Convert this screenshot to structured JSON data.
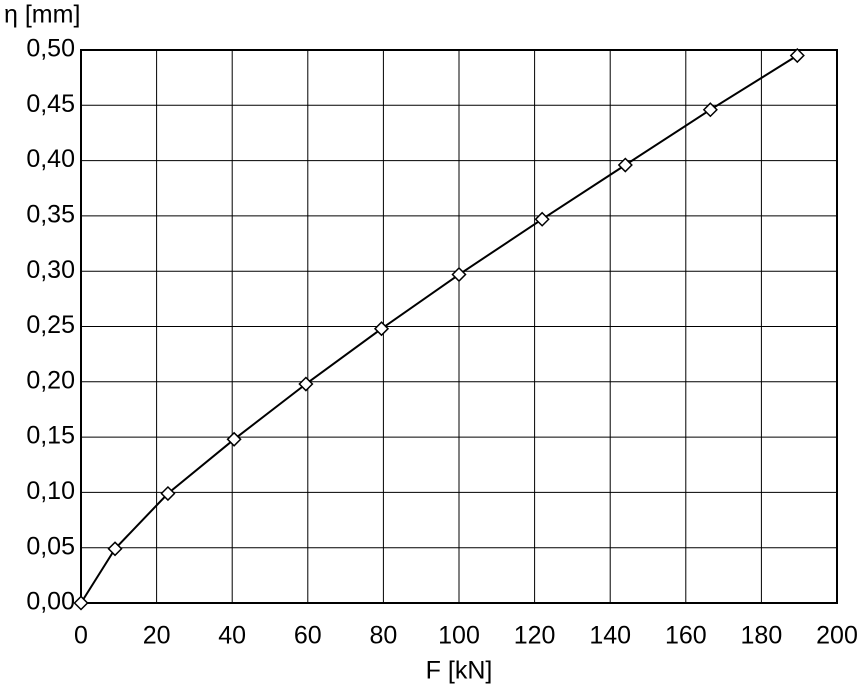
{
  "chart_data": {
    "type": "line",
    "x_label": "F [kN]",
    "y_label": "η [mm]",
    "x": [
      0,
      9,
      23,
      40.5,
      59.5,
      79.5,
      100,
      122,
      144,
      166.5,
      189.5
    ],
    "series": [
      {
        "name": "η",
        "color": "#000000",
        "values": [
          0,
          0.049,
          0.099,
          0.148,
          0.198,
          0.248,
          0.297,
          0.347,
          0.396,
          0.446,
          0.495
        ]
      }
    ],
    "xlim": [
      0,
      200
    ],
    "xticks": [
      0,
      20,
      40,
      60,
      80,
      100,
      120,
      140,
      160,
      180,
      200
    ],
    "ylim": [
      0,
      0.5
    ],
    "yticks": [
      {
        "value": 0,
        "label": "0,00"
      },
      {
        "value": 0.05,
        "label": "0,05"
      },
      {
        "value": 0.1,
        "label": "0,10"
      },
      {
        "value": 0.15,
        "label": "0,15"
      },
      {
        "value": 0.2,
        "label": "0,20"
      },
      {
        "value": 0.25,
        "label": "0,25"
      },
      {
        "value": 0.3,
        "label": "0,30"
      },
      {
        "value": 0.35,
        "label": "0,35"
      },
      {
        "value": 0.4,
        "label": "0,40"
      },
      {
        "value": 0.45,
        "label": "0,45"
      },
      {
        "value": 0.5,
        "label": "0,50"
      }
    ],
    "grid": true
  }
}
